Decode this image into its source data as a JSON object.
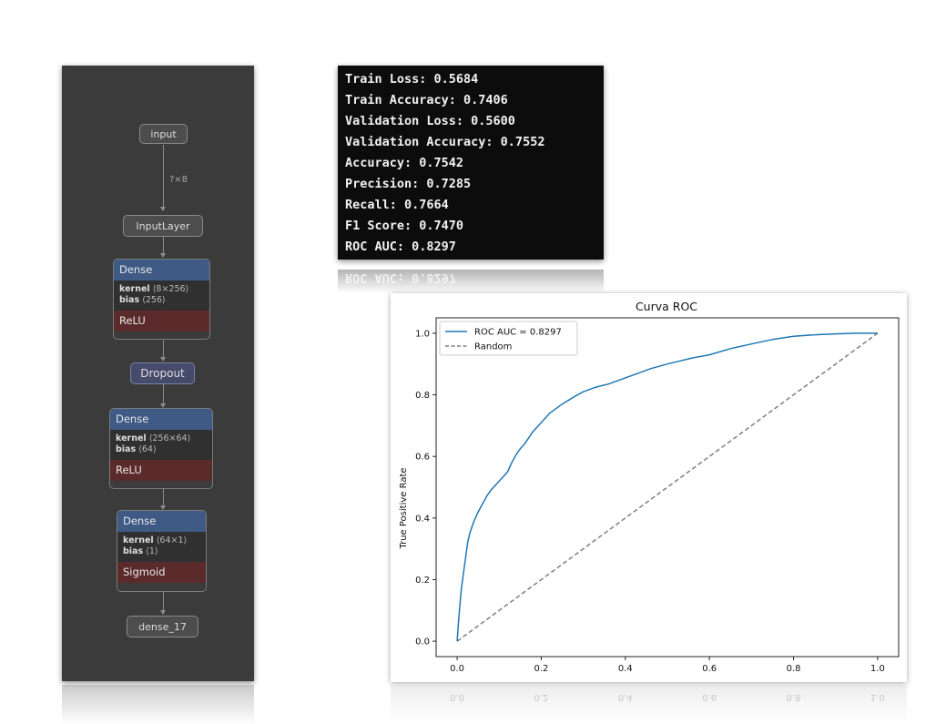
{
  "model_graph": {
    "input_label": "input",
    "input_shape": "?×8",
    "input_layer_label": "InputLayer",
    "dense1": {
      "title": "Dense",
      "kernel_name": "kernel",
      "kernel_shape": "⟨8×256⟩",
      "bias_name": "bias",
      "bias_shape": "⟨256⟩",
      "activation": "ReLU"
    },
    "dropout_label": "Dropout",
    "dense2": {
      "title": "Dense",
      "kernel_name": "kernel",
      "kernel_shape": "⟨256×64⟩",
      "bias_name": "bias",
      "bias_shape": "⟨64⟩",
      "activation": "ReLU"
    },
    "dense3": {
      "title": "Dense",
      "kernel_name": "kernel",
      "kernel_shape": "⟨64×1⟩",
      "bias_name": "bias",
      "bias_shape": "⟨1⟩",
      "activation": "Sigmoid"
    },
    "output_label": "dense_17",
    "colors": {
      "panel": "#3b3b3b",
      "dense_header": "#3e5a85",
      "relu": "#5b2a2a",
      "sigmoid": "#5b2a2a",
      "dropout": "#474b6b"
    }
  },
  "metrics": {
    "lines": [
      "Train Loss: 0.5684",
      "Train Accuracy: 0.7406",
      "Validation Loss: 0.5600",
      "Validation Accuracy: 0.7552",
      "Accuracy: 0.7542",
      "Precision: 0.7285",
      "Recall: 0.7664",
      "F1 Score: 0.7470",
      "ROC AUC: 0.8297"
    ],
    "reflection_text": "ROC AUC: 0.8297"
  },
  "chart_data": {
    "type": "line",
    "title": "Curva ROC",
    "xlabel": "",
    "ylabel": "True Positive Rate",
    "xlim": [
      -0.05,
      1.05
    ],
    "ylim": [
      -0.05,
      1.05
    ],
    "x_ticks": [
      "0.0",
      "0.2",
      "0.4",
      "0.6",
      "0.8",
      "1.0"
    ],
    "y_ticks": [
      "0.0",
      "0.2",
      "0.4",
      "0.6",
      "0.8",
      "1.0"
    ],
    "grid": false,
    "legend_position": "top-left",
    "series": [
      {
        "name": "ROC AUC = 0.8297",
        "color": "#1f77b4",
        "style": "solid",
        "x": [
          0,
          0.003,
          0.006,
          0.01,
          0.015,
          0.02,
          0.025,
          0.03,
          0.04,
          0.05,
          0.06,
          0.07,
          0.08,
          0.09,
          0.1,
          0.11,
          0.12,
          0.13,
          0.14,
          0.15,
          0.16,
          0.17,
          0.18,
          0.2,
          0.22,
          0.25,
          0.28,
          0.3,
          0.33,
          0.36,
          0.4,
          0.43,
          0.46,
          0.5,
          0.53,
          0.56,
          0.6,
          0.65,
          0.7,
          0.75,
          0.8,
          0.85,
          0.9,
          0.95,
          1.0
        ],
        "y": [
          0,
          0.06,
          0.11,
          0.17,
          0.22,
          0.27,
          0.32,
          0.35,
          0.39,
          0.42,
          0.445,
          0.47,
          0.49,
          0.505,
          0.52,
          0.535,
          0.55,
          0.58,
          0.605,
          0.625,
          0.64,
          0.66,
          0.68,
          0.71,
          0.74,
          0.77,
          0.795,
          0.81,
          0.825,
          0.835,
          0.855,
          0.87,
          0.885,
          0.9,
          0.91,
          0.92,
          0.93,
          0.95,
          0.965,
          0.98,
          0.99,
          0.995,
          0.998,
          1.0,
          1.0
        ]
      },
      {
        "name": "Random",
        "color": "#7f7f7f",
        "style": "dashed",
        "x": [
          0,
          1
        ],
        "y": [
          0,
          1
        ]
      }
    ]
  }
}
